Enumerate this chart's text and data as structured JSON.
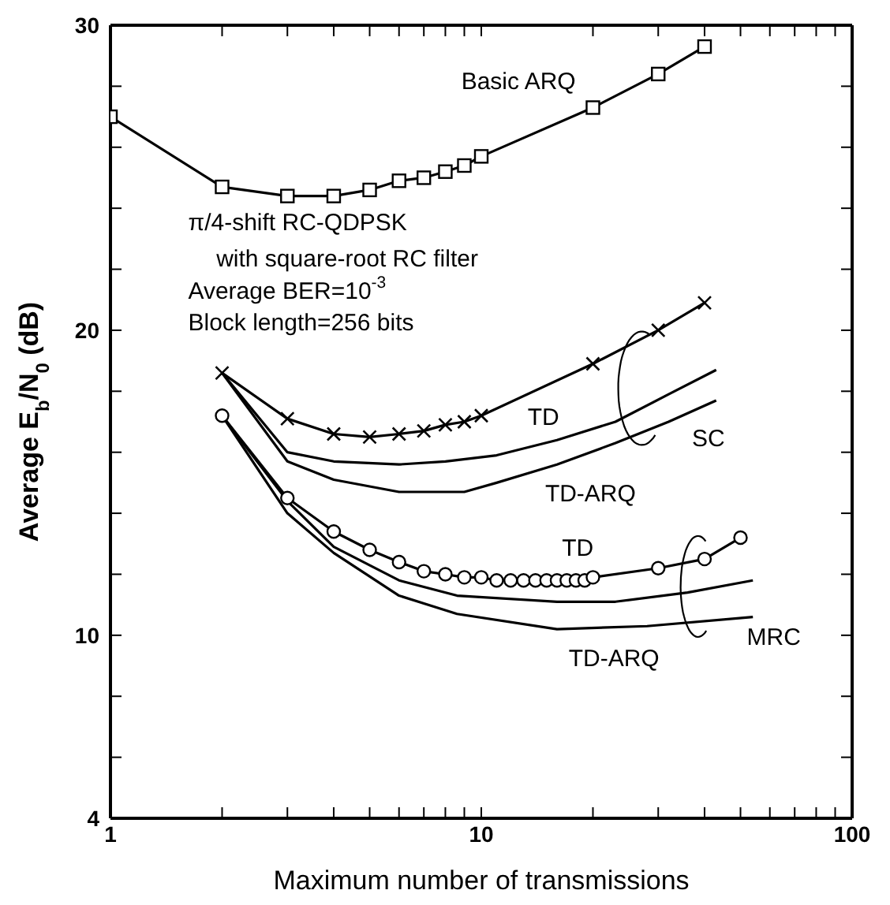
{
  "chart_data": {
    "type": "line",
    "xlabel": "Maximum number of transmissions",
    "ylabel": "Average E$_{b}$/N$_{0}$ (dB)",
    "log": "x",
    "grid": false,
    "legend": false,
    "line_style": "solid",
    "xlim": [
      1,
      100
    ],
    "xticks": [
      1,
      {
        "value": 2,
        "label": null
      },
      {
        "value": 3,
        "label": null
      },
      {
        "value": 4,
        "label": null
      },
      {
        "value": 5,
        "label": null
      },
      {
        "value": 6,
        "label": null
      },
      {
        "value": 7,
        "label": null
      },
      {
        "value": 8,
        "label": null
      },
      {
        "value": 9,
        "label": null
      },
      10,
      {
        "value": 20,
        "label": null
      },
      {
        "value": 30,
        "label": null
      },
      {
        "value": 40,
        "label": null
      },
      {
        "value": 50,
        "label": null
      },
      {
        "value": 60,
        "label": null
      },
      {
        "value": 70,
        "label": null
      },
      {
        "value": 80,
        "label": null
      },
      {
        "value": 90,
        "label": null
      },
      100
    ],
    "ylim": [
      4,
      30
    ],
    "yticks": [
      4,
      {
        "value": 6,
        "label": null
      },
      {
        "value": 8,
        "label": null
      },
      10,
      {
        "value": 12,
        "label": null
      },
      {
        "value": 14,
        "label": null
      },
      {
        "value": 16,
        "label": null
      },
      {
        "value": 18,
        "label": null
      },
      20,
      {
        "value": 22,
        "label": null
      },
      {
        "value": 24,
        "label": null
      },
      {
        "value": 26,
        "label": null
      },
      {
        "value": 28,
        "label": null
      },
      30
    ],
    "annotations": [
      "π/4-shift RC-QDPSK",
      "with square-root RC filter",
      "Average BER=10$^{-3}$",
      "Block length=256 bits",
      "SC",
      "MRC"
    ],
    "series": [
      {
        "name": "Basic ARQ",
        "color": "#000000",
        "marker": "square",
        "x": [
          1,
          2,
          3,
          4,
          5,
          6,
          7,
          8,
          9,
          10,
          20,
          30,
          40
        ],
        "values": [
          27.0,
          24.7,
          24.4,
          24.4,
          24.6,
          24.9,
          25.0,
          25.2,
          25.4,
          25.7,
          27.3,
          28.4,
          29.3
        ]
      },
      {
        "name": "TD",
        "color": "#000000",
        "marker": "cross",
        "x": [
          2,
          3,
          4,
          5,
          6,
          7,
          8,
          9,
          10,
          20,
          30,
          40
        ],
        "values": [
          18.6,
          17.1,
          16.6,
          16.5,
          16.6,
          16.7,
          16.9,
          17.0,
          17.2,
          18.9,
          20.0,
          20.9
        ]
      },
      {
        "name": "TD-ARQ",
        "color": "#000000",
        "marker": "none",
        "x": [
          2,
          3,
          4,
          6,
          8,
          11,
          16,
          23,
          32,
          43
        ],
        "values": [
          18.6,
          16.0,
          15.7,
          15.6,
          15.7,
          15.9,
          16.4,
          17.0,
          17.9,
          18.7
        ]
      },
      {
        "color": "#000000",
        "marker": "none",
        "x": [
          2,
          3,
          4,
          6,
          9,
          11,
          16,
          23,
          32,
          43
        ],
        "values": [
          18.6,
          15.7,
          15.1,
          14.7,
          14.7,
          15.0,
          15.6,
          16.3,
          17.0,
          17.7
        ]
      },
      {
        "name": "TD",
        "color": "#000000",
        "marker": "circle",
        "x": [
          2,
          3,
          4,
          5,
          6,
          7,
          8,
          9,
          10,
          11,
          12,
          13,
          14,
          15,
          16,
          17,
          18,
          19,
          20,
          30,
          40,
          50
        ],
        "values": [
          17.2,
          14.5,
          13.4,
          12.8,
          12.4,
          12.1,
          12.0,
          11.9,
          11.9,
          11.8,
          11.8,
          11.8,
          11.8,
          11.8,
          11.8,
          11.8,
          11.8,
          11.8,
          11.9,
          12.2,
          12.5,
          13.2
        ]
      },
      {
        "color": "#000000",
        "marker": "none",
        "x": [
          2,
          3,
          4,
          6,
          8.6,
          16,
          23,
          36,
          54
        ],
        "values": [
          17.2,
          14.4,
          12.9,
          11.8,
          11.3,
          11.1,
          11.1,
          11.4,
          11.8
        ]
      },
      {
        "name": "TD-ARQ",
        "color": "#000000",
        "marker": "none",
        "x": [
          2,
          3,
          4,
          6,
          8.6,
          16,
          28,
          54
        ],
        "values": [
          17.2,
          14.0,
          12.7,
          11.3,
          10.7,
          10.2,
          10.3,
          10.6
        ]
      }
    ]
  }
}
